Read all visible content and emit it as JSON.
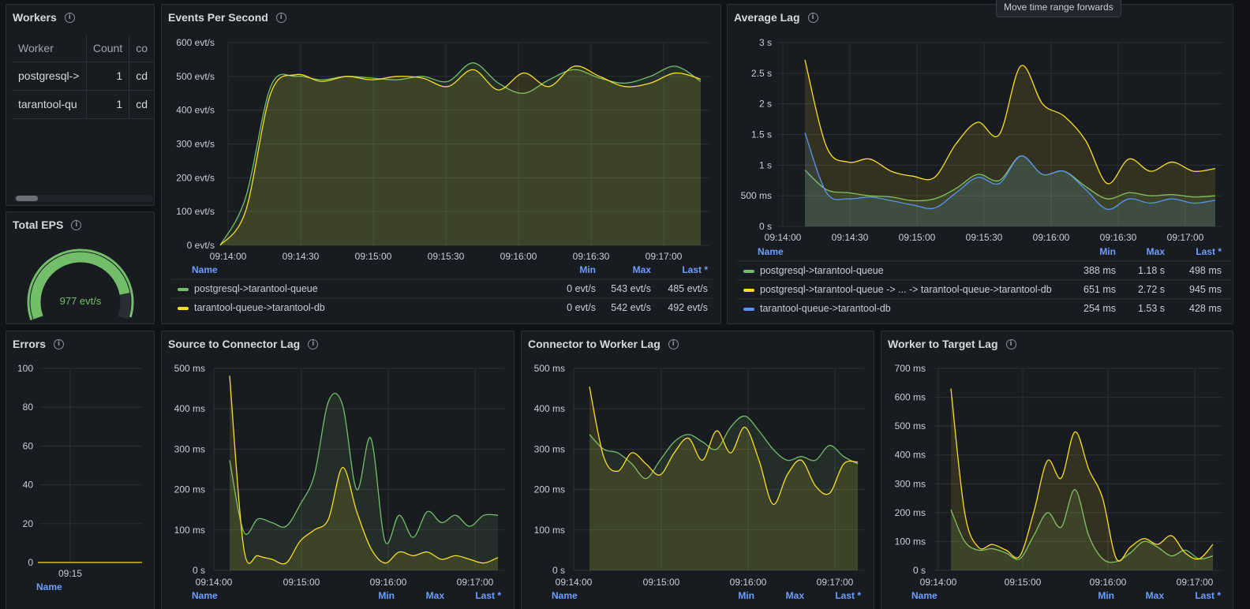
{
  "tooltip": "Move time range forwards",
  "legend_cols": {
    "name": "Name",
    "min": "Min",
    "max": "Max",
    "last": "Last *"
  },
  "colors": {
    "green": "#73bf69",
    "yellow": "#fade2a",
    "blue": "#5794f2"
  },
  "workers": {
    "title": "Workers",
    "columns": [
      "Worker",
      "Count",
      "co"
    ],
    "rows": [
      [
        "postgresql->",
        "1",
        "cd"
      ],
      [
        "tarantool-qu",
        "1",
        "cd"
      ]
    ]
  },
  "total_eps": {
    "title": "Total EPS",
    "value": "977 evt/s",
    "fraction": 0.86
  },
  "errors": {
    "title": "Errors",
    "y_ticks": [
      "100",
      "80",
      "60",
      "40",
      "20",
      "0"
    ],
    "x_ticks": [
      "09:15"
    ]
  },
  "eps": {
    "title": "Events Per Second",
    "y_ticks": [
      "600 evt/s",
      "500 evt/s",
      "400 evt/s",
      "300 evt/s",
      "200 evt/s",
      "100 evt/s",
      "0 evt/s"
    ],
    "x_ticks": [
      "09:14:00",
      "09:14:30",
      "09:15:00",
      "09:15:30",
      "09:16:00",
      "09:16:30",
      "09:17:00"
    ],
    "legend": [
      {
        "name": "postgresql->tarantool-queue",
        "min": "0 evt/s",
        "max": "543 evt/s",
        "last": "485 evt/s",
        "color": "#73bf69"
      },
      {
        "name": "tarantool-queue->tarantool-db",
        "min": "0 evt/s",
        "max": "542 evt/s",
        "last": "492 evt/s",
        "color": "#fade2a"
      }
    ]
  },
  "avg_lag": {
    "title": "Average Lag",
    "y_ticks": [
      "3 s",
      "2.5 s",
      "2 s",
      "1.5 s",
      "1 s",
      "500 ms",
      "0 s"
    ],
    "x_ticks": [
      "09:14:00",
      "09:14:30",
      "09:15:00",
      "09:15:30",
      "09:16:00",
      "09:16:30",
      "09:17:00"
    ],
    "legend": [
      {
        "name": "postgresql->tarantool-queue",
        "min": "388 ms",
        "max": "1.18 s",
        "last": "498 ms",
        "color": "#73bf69"
      },
      {
        "name": "postgresql->tarantool-queue -> ... -> tarantool-queue->tarantool-db",
        "min": "651 ms",
        "max": "2.72 s",
        "last": "945 ms",
        "color": "#fade2a"
      },
      {
        "name": "tarantool-queue->tarantool-db",
        "min": "254 ms",
        "max": "1.53 s",
        "last": "428 ms",
        "color": "#5794f2"
      }
    ]
  },
  "src_conn": {
    "title": "Source to Connector Lag",
    "y_ticks": [
      "500 ms",
      "400 ms",
      "300 ms",
      "200 ms",
      "100 ms",
      "0 s"
    ],
    "x_ticks": [
      "09:14:00",
      "09:15:00",
      "09:16:00",
      "09:17:00"
    ]
  },
  "conn_worker": {
    "title": "Connector to Worker Lag",
    "y_ticks": [
      "500 ms",
      "400 ms",
      "300 ms",
      "200 ms",
      "100 ms",
      "0 s"
    ],
    "x_ticks": [
      "09:14:00",
      "09:15:00",
      "09:16:00",
      "09:17:00"
    ]
  },
  "worker_target": {
    "title": "Worker to Target Lag",
    "y_ticks": [
      "700 ms",
      "600 ms",
      "500 ms",
      "400 ms",
      "300 ms",
      "200 ms",
      "100 ms",
      "0 s"
    ],
    "x_ticks": [
      "09:14:00",
      "09:15:00",
      "09:16:00",
      "09:17:00"
    ]
  },
  "chart_data": [
    {
      "type": "area",
      "title": "Events Per Second",
      "ylim": [
        0,
        600
      ],
      "x": [
        "09:14:00",
        "09:14:10",
        "09:14:20",
        "09:14:30",
        "09:14:40",
        "09:14:50",
        "09:15:00",
        "09:15:10",
        "09:15:20",
        "09:15:30",
        "09:15:40",
        "09:15:50",
        "09:16:00",
        "09:16:10",
        "09:16:20",
        "09:16:30",
        "09:16:40",
        "09:16:50",
        "09:17:00",
        "09:17:10"
      ],
      "series": [
        {
          "name": "postgresql->tarantool-queue",
          "values": [
            0,
            140,
            470,
            500,
            490,
            500,
            495,
            490,
            500,
            485,
            540,
            480,
            450,
            490,
            520,
            495,
            480,
            500,
            530,
            485
          ]
        },
        {
          "name": "tarantool-queue->tarantool-db",
          "values": [
            0,
            100,
            450,
            505,
            485,
            500,
            490,
            500,
            495,
            470,
            520,
            460,
            510,
            470,
            530,
            500,
            470,
            480,
            510,
            492
          ]
        }
      ]
    },
    {
      "type": "area",
      "title": "Average Lag",
      "ylim": [
        0,
        3
      ],
      "x": [
        "09:14:00",
        "09:14:10",
        "09:14:20",
        "09:14:30",
        "09:14:40",
        "09:14:50",
        "09:15:00",
        "09:15:10",
        "09:15:20",
        "09:15:30",
        "09:15:40",
        "09:15:50",
        "09:16:00",
        "09:16:10",
        "09:16:20",
        "09:16:30",
        "09:16:40",
        "09:16:50",
        "09:17:00",
        "09:17:10"
      ],
      "series": [
        {
          "name": "postgresql->tarantool-queue",
          "values": [
            0.92,
            0.6,
            0.55,
            0.5,
            0.48,
            0.42,
            0.45,
            0.62,
            0.85,
            0.75,
            1.15,
            0.85,
            0.9,
            0.65,
            0.45,
            0.55,
            0.5,
            0.52,
            0.48,
            0.5
          ]
        },
        {
          "name": "postgresql->tarantool-queue -> ... -> tarantool-queue->tarantool-db",
          "values": [
            2.72,
            1.3,
            1.05,
            1.1,
            0.9,
            0.82,
            0.8,
            1.35,
            1.7,
            1.5,
            2.62,
            2.0,
            1.8,
            1.4,
            0.7,
            1.1,
            0.9,
            1.05,
            0.9,
            0.945
          ]
        },
        {
          "name": "tarantool-queue->tarantool-db",
          "values": [
            1.53,
            0.55,
            0.45,
            0.48,
            0.42,
            0.35,
            0.3,
            0.55,
            0.8,
            0.7,
            1.15,
            0.85,
            0.9,
            0.6,
            0.28,
            0.45,
            0.38,
            0.45,
            0.38,
            0.428
          ]
        }
      ]
    },
    {
      "type": "line",
      "title": "Errors",
      "ylim": [
        0,
        100
      ],
      "x": [
        "09:14:30",
        "09:15:00",
        "09:15:30"
      ],
      "series": [
        {
          "name": "",
          "values": [
            0,
            0,
            0
          ]
        }
      ]
    },
    {
      "type": "area",
      "title": "Source to Connector Lag",
      "ylim": [
        0,
        550
      ],
      "x": [
        "09:14:00",
        "09:14:10",
        "09:14:20",
        "09:14:30",
        "09:14:40",
        "09:14:50",
        "09:15:00",
        "09:15:10",
        "09:15:20",
        "09:15:30",
        "09:15:40",
        "09:15:50",
        "09:16:00",
        "09:16:10",
        "09:16:20",
        "09:16:30",
        "09:16:40",
        "09:16:50",
        "09:17:00",
        "09:17:10"
      ],
      "series": [
        {
          "name": "",
          "values": [
            300,
            105,
            140,
            130,
            120,
            180,
            260,
            460,
            450,
            220,
            360,
            80,
            150,
            90,
            160,
            130,
            150,
            120,
            150,
            150
          ]
        },
        {
          "name": "",
          "values": [
            530,
            60,
            40,
            30,
            20,
            80,
            110,
            140,
            280,
            160,
            60,
            20,
            50,
            40,
            50,
            30,
            40,
            30,
            20,
            35
          ]
        }
      ]
    },
    {
      "type": "area",
      "title": "Connector to Worker Lag",
      "ylim": [
        0,
        550
      ],
      "x": [
        "09:14:00",
        "09:14:10",
        "09:14:20",
        "09:14:30",
        "09:14:40",
        "09:14:50",
        "09:15:00",
        "09:15:10",
        "09:15:20",
        "09:15:30",
        "09:15:40",
        "09:15:50",
        "09:16:00",
        "09:16:10",
        "09:16:20",
        "09:16:30",
        "09:16:40",
        "09:16:50",
        "09:17:00",
        "09:17:10"
      ],
      "series": [
        {
          "name": "",
          "values": [
            370,
            330,
            320,
            290,
            250,
            300,
            350,
            370,
            350,
            330,
            390,
            420,
            380,
            330,
            300,
            310,
            300,
            340,
            310,
            290
          ]
        },
        {
          "name": "",
          "values": [
            500,
            310,
            270,
            320,
            290,
            260,
            320,
            360,
            300,
            380,
            320,
            390,
            300,
            180,
            260,
            300,
            230,
            210,
            290,
            295
          ]
        }
      ]
    },
    {
      "type": "area",
      "title": "Worker to Target Lag",
      "ylim": [
        0,
        700
      ],
      "x": [
        "09:14:00",
        "09:14:10",
        "09:14:20",
        "09:14:30",
        "09:14:40",
        "09:14:50",
        "09:15:00",
        "09:15:10",
        "09:15:20",
        "09:15:30",
        "09:15:40",
        "09:15:50",
        "09:16:00",
        "09:16:10",
        "09:16:20",
        "09:16:30",
        "09:16:40",
        "09:16:50",
        "09:17:00",
        "09:17:10"
      ],
      "series": [
        {
          "name": "",
          "values": [
            210,
            100,
            70,
            75,
            60,
            40,
            120,
            200,
            150,
            280,
            120,
            40,
            30,
            60,
            100,
            80,
            50,
            70,
            40,
            50
          ]
        },
        {
          "name": "",
          "values": [
            630,
            200,
            80,
            90,
            70,
            50,
            200,
            380,
            320,
            480,
            350,
            250,
            40,
            80,
            110,
            90,
            120,
            60,
            40,
            90
          ]
        }
      ]
    }
  ]
}
